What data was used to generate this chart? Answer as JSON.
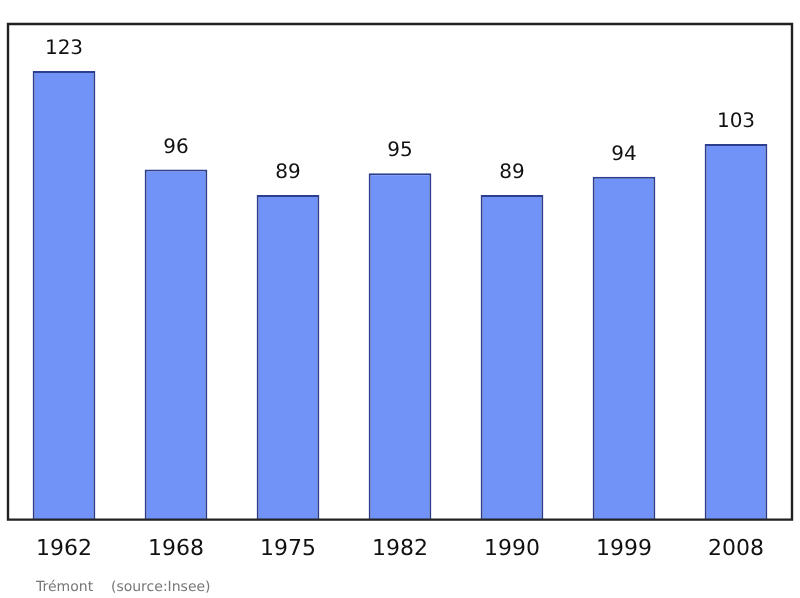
{
  "chart_data": {
    "type": "bar",
    "categories": [
      "1962",
      "1968",
      "1975",
      "1982",
      "1990",
      "1999",
      "2008"
    ],
    "values": [
      123,
      96,
      89,
      95,
      89,
      94,
      103
    ],
    "color": "#7193f7",
    "data_labels": true,
    "grid": false,
    "legend": false,
    "annotations": [
      "Trémont    (source:Insee)"
    ]
  }
}
